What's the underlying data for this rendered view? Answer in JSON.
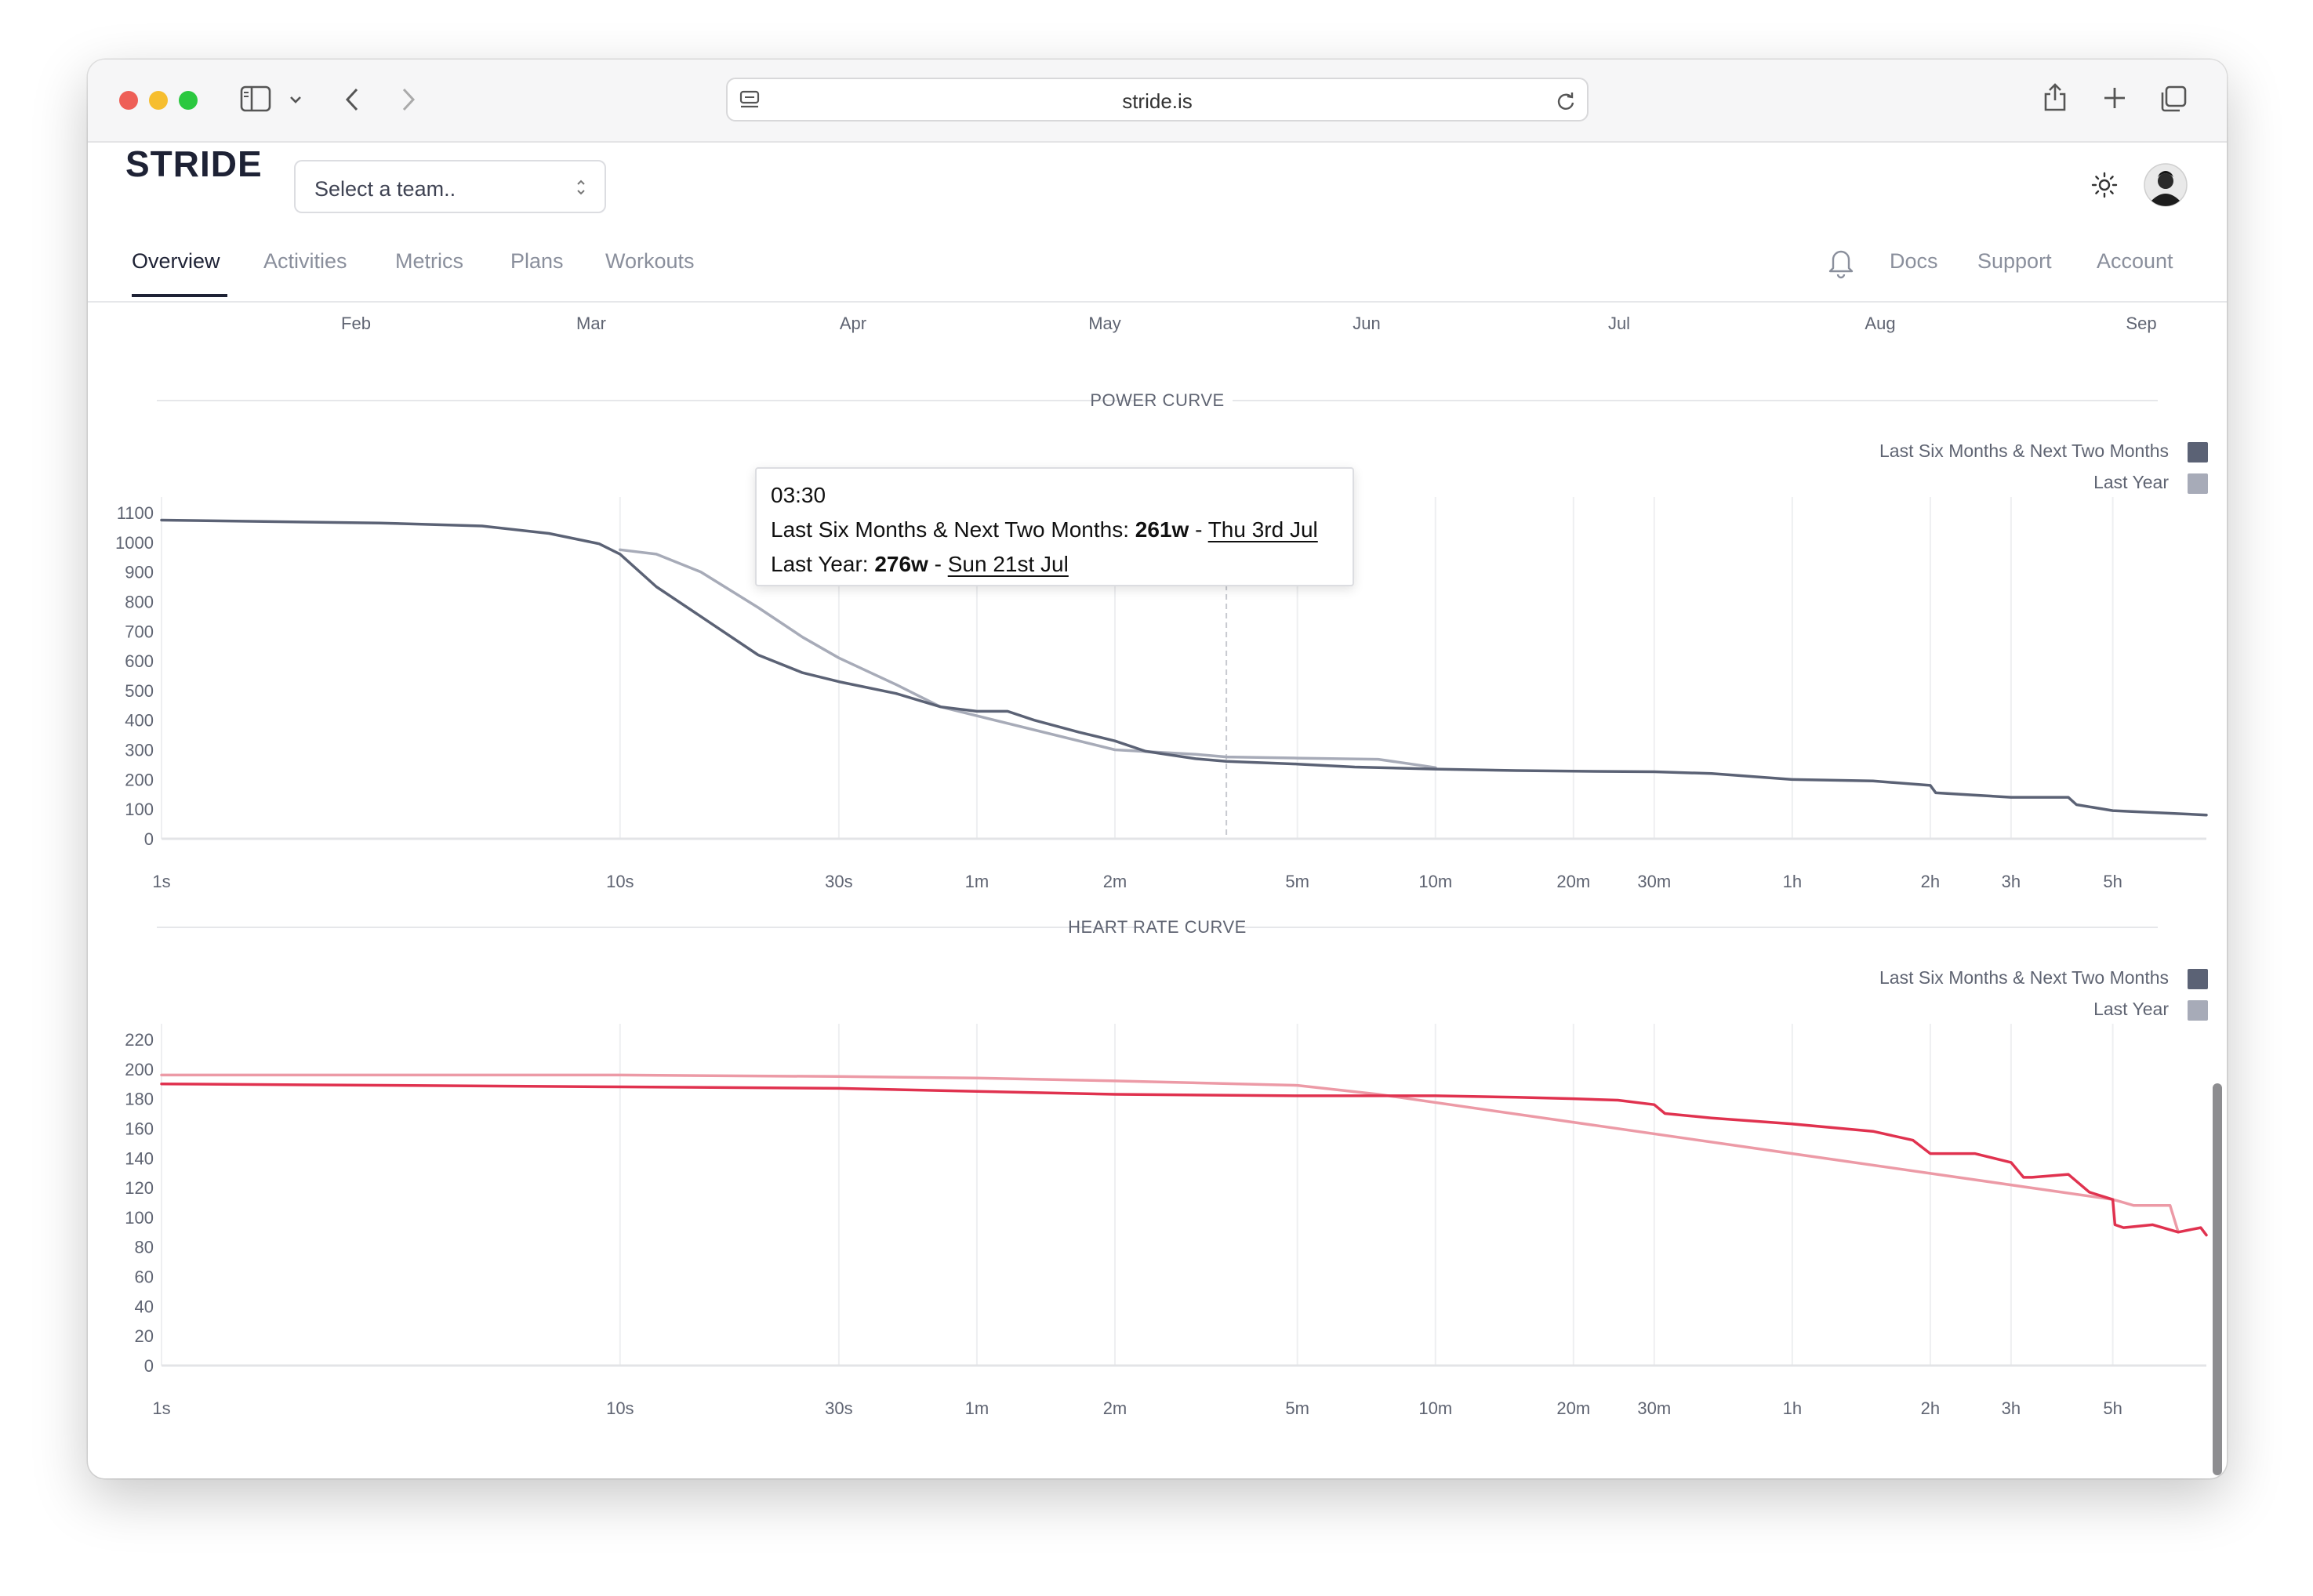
{
  "browser": {
    "url": "stride.is",
    "colors": {
      "close": "#ee5f57",
      "minimize": "#f6be2f",
      "zoom": "#2bc840"
    }
  },
  "app": {
    "brand": "STRIDE",
    "team_select": {
      "placeholder": "Select a team.."
    },
    "tabs": [
      {
        "label": "Overview",
        "active": true
      },
      {
        "label": "Activities",
        "active": false
      },
      {
        "label": "Metrics",
        "active": false
      },
      {
        "label": "Plans",
        "active": false
      },
      {
        "label": "Workouts",
        "active": false
      }
    ],
    "right_links": [
      "Docs",
      "Support",
      "Account"
    ]
  },
  "timeline": {
    "months": [
      "Feb",
      "Mar",
      "Apr",
      "May",
      "Jun",
      "Jul",
      "Aug",
      "Sep"
    ]
  },
  "tooltip": {
    "time": "03:30",
    "line1_label": "Last Six Months & Next Two Months: ",
    "line1_value": "261w",
    "line1_sep": " - ",
    "line1_date": "Thu 3rd Jul",
    "line2_label": "Last Year: ",
    "line2_value": "276w",
    "line2_sep": " - ",
    "line2_date": "Sun 21st Jul"
  },
  "chart_data": [
    {
      "type": "line",
      "title": "POWER CURVE",
      "x_scale": "log",
      "x_ticks": [
        "1s",
        "10s",
        "30s",
        "1m",
        "2m",
        "5m",
        "10m",
        "20m",
        "30m",
        "1h",
        "2h",
        "3h",
        "5h"
      ],
      "x_tick_seconds": [
        1,
        10,
        30,
        60,
        120,
        300,
        600,
        1200,
        1800,
        3600,
        7200,
        10800,
        18000
      ],
      "xlim_seconds": [
        1,
        28800
      ],
      "y_ticks": [
        0,
        100,
        200,
        300,
        400,
        500,
        600,
        700,
        800,
        900,
        1000,
        1100
      ],
      "ylim": [
        0,
        1100
      ],
      "legend_placement": "top-right",
      "hover_marker_seconds": 210,
      "series": [
        {
          "name": "Last Six Months & Next Two Months",
          "color": "#5b6275",
          "x_seconds": [
            1,
            3,
            5,
            7,
            9,
            10,
            12,
            15,
            20,
            25,
            30,
            40,
            50,
            60,
            70,
            80,
            100,
            120,
            140,
            180,
            210,
            300,
            400,
            600,
            900,
            1200,
            1800,
            2400,
            3600,
            5400,
            7200,
            7400,
            10800,
            14400,
            15000,
            18000,
            28800
          ],
          "values": [
            1075,
            1065,
            1055,
            1030,
            995,
            960,
            850,
            750,
            620,
            560,
            530,
            490,
            445,
            430,
            430,
            400,
            360,
            330,
            295,
            270,
            261,
            252,
            242,
            235,
            230,
            228,
            226,
            220,
            200,
            195,
            180,
            155,
            140,
            140,
            115,
            95,
            80
          ]
        },
        {
          "name": "Last Year",
          "color": "#a7abb8",
          "x_seconds": [
            10,
            12,
            15,
            20,
            25,
            30,
            40,
            50,
            120,
            180,
            210,
            300,
            450,
            600
          ],
          "values": [
            975,
            960,
            900,
            780,
            680,
            610,
            520,
            445,
            300,
            285,
            276,
            272,
            268,
            240
          ]
        }
      ]
    },
    {
      "type": "line",
      "title": "HEART RATE CURVE",
      "x_scale": "log",
      "x_ticks": [
        "1s",
        "10s",
        "30s",
        "1m",
        "2m",
        "5m",
        "10m",
        "20m",
        "30m",
        "1h",
        "2h",
        "3h",
        "5h"
      ],
      "x_tick_seconds": [
        1,
        10,
        30,
        60,
        120,
        300,
        600,
        1200,
        1800,
        3600,
        7200,
        10800,
        18000
      ],
      "xlim_seconds": [
        1,
        28800
      ],
      "y_ticks": [
        0,
        20,
        40,
        60,
        80,
        100,
        120,
        140,
        160,
        180,
        200,
        220
      ],
      "ylim": [
        0,
        220
      ],
      "legend_placement": "top-right",
      "series": [
        {
          "name": "Last Six Months & Next Two Months",
          "color": "#e0324f",
          "x_seconds": [
            1,
            10,
            30,
            60,
            120,
            300,
            600,
            900,
            1200,
            1500,
            1800,
            1900,
            2400,
            3600,
            5400,
            6600,
            7200,
            9000,
            10800,
            11500,
            12000,
            14400,
            16000,
            18000,
            18200,
            19000,
            22000,
            25000,
            28000,
            28800
          ],
          "values": [
            190,
            188,
            187,
            185,
            183,
            182,
            182,
            181,
            180,
            179,
            176,
            170,
            167,
            163,
            158,
            152,
            143,
            143,
            137,
            127,
            127,
            129,
            117,
            112,
            95,
            93,
            95,
            90,
            93,
            88
          ]
        },
        {
          "name": "Last Year",
          "color": "#ec9aa6",
          "x_seconds": [
            1,
            10,
            30,
            60,
            120,
            300,
            450,
            18000,
            18500,
            20000,
            24000,
            25000
          ],
          "values": [
            196,
            196,
            195,
            194,
            192,
            189,
            183,
            112,
            111,
            108,
            108,
            90
          ]
        }
      ]
    }
  ]
}
